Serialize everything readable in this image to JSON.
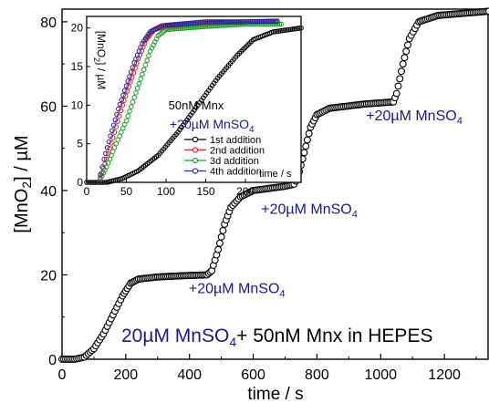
{
  "chart_data": [
    {
      "type": "scatter",
      "role": "main",
      "xlabel": "time / s",
      "ylabel_parts": [
        "[MnO",
        "2",
        "] / µM"
      ],
      "xlim": [
        0,
        1340
      ],
      "ylim": [
        0,
        83
      ],
      "xticks": [
        0,
        200,
        400,
        600,
        800,
        1000,
        1200
      ],
      "yticks": [
        0,
        20,
        40,
        60,
        80
      ],
      "grid": false,
      "marker": "open-circle",
      "marker_color": "#000000",
      "series": [
        {
          "points": [
            [
              0,
              0
            ],
            [
              40,
              0
            ],
            [
              70,
              0.5
            ],
            [
              100,
              2.5
            ],
            [
              130,
              6
            ],
            [
              160,
              10.5
            ],
            [
              190,
              15
            ],
            [
              215,
              18
            ],
            [
              240,
              19
            ],
            [
              300,
              19.5
            ],
            [
              380,
              19.8
            ],
            [
              455,
              20
            ],
            [
              470,
              21
            ],
            [
              490,
              26
            ],
            [
              510,
              32
            ],
            [
              530,
              36
            ],
            [
              560,
              38.5
            ],
            [
              600,
              40
            ],
            [
              700,
              41
            ],
            [
              728,
              41.5
            ],
            [
              740,
              43
            ],
            [
              760,
              49
            ],
            [
              780,
              55
            ],
            [
              800,
              58
            ],
            [
              840,
              59.5
            ],
            [
              950,
              60.5
            ],
            [
              1040,
              61
            ],
            [
              1050,
              63
            ],
            [
              1070,
              70
            ],
            [
              1090,
              76
            ],
            [
              1120,
              80
            ],
            [
              1180,
              81.5
            ],
            [
              1340,
              82.5
            ]
          ]
        }
      ],
      "annotations": [
        {
          "text_parts": [
            "+20",
            "µ",
            "M MnSO",
            "4"
          ],
          "x": 455,
          "y": 20
        },
        {
          "text_parts": [
            "+20",
            "µ",
            "M MnSO",
            "4"
          ],
          "x": 728,
          "y": 41
        },
        {
          "text_parts": [
            "+20",
            "µ",
            "M MnSO",
            "4"
          ],
          "x": 1040,
          "y": 61
        }
      ],
      "caption_parts": [
        "20µM MnSO",
        "4",
        "+ 50nM Mnx in HEPES"
      ],
      "colors": {
        "axis": "#000000",
        "annotation": "#1a1a8c",
        "caption_blue": "#1a1a8c",
        "caption_black": "#000000"
      }
    },
    {
      "type": "scatter",
      "role": "inset",
      "xlabel": "time / s",
      "ylabel_parts": [
        "[MnO",
        "2",
        "] / µM"
      ],
      "xlim": [
        0,
        270
      ],
      "ylim": [
        0,
        21.5
      ],
      "xticks": [
        0,
        50,
        100,
        150,
        200
      ],
      "yticks": [
        0,
        5,
        10,
        15,
        20
      ],
      "grid": false,
      "legend_title": "50nM Mnx",
      "legend_subtitle_parts": [
        "+20",
        "µ",
        "M MnSO",
        "4"
      ],
      "legend_position": "right",
      "series": [
        {
          "name": "1st addition",
          "color": "#000000",
          "points": [
            [
              0,
              0
            ],
            [
              25,
              0
            ],
            [
              45,
              0.5
            ],
            [
              65,
              1.5
            ],
            [
              90,
              3.5
            ],
            [
              115,
              6.5
            ],
            [
              140,
              10
            ],
            [
              165,
              13.5
            ],
            [
              190,
              16.5
            ],
            [
              210,
              18.5
            ],
            [
              235,
              19.5
            ],
            [
              270,
              20
            ]
          ]
        },
        {
          "name": "2nd addition",
          "color": "#e0201c",
          "points": [
            [
              15,
              0
            ],
            [
              25,
              3
            ],
            [
              35,
              6.5
            ],
            [
              45,
              10
            ],
            [
              55,
              13
            ],
            [
              65,
              16
            ],
            [
              75,
              18.5
            ],
            [
              85,
              19.8
            ],
            [
              100,
              20.2
            ],
            [
              150,
              20.6
            ],
            [
              200,
              20.8
            ],
            [
              240,
              20.8
            ]
          ]
        },
        {
          "name": "3d addition",
          "color": "#1e9e2a",
          "points": [
            [
              15,
              0
            ],
            [
              25,
              2
            ],
            [
              35,
              4.5
            ],
            [
              50,
              8
            ],
            [
              60,
              11
            ],
            [
              70,
              14
            ],
            [
              80,
              17
            ],
            [
              90,
              19
            ],
            [
              100,
              19.8
            ],
            [
              150,
              20.2
            ],
            [
              200,
              20.5
            ],
            [
              245,
              20.5
            ]
          ]
        },
        {
          "name": "4th addition",
          "color": "#24249a",
          "points": [
            [
              15,
              0
            ],
            [
              22,
              3
            ],
            [
              30,
              6
            ],
            [
              40,
              9.5
            ],
            [
              50,
              12.5
            ],
            [
              60,
              15.5
            ],
            [
              70,
              18
            ],
            [
              80,
              19.5
            ],
            [
              95,
              20.3
            ],
            [
              150,
              20.8
            ],
            [
              200,
              20.8
            ],
            [
              240,
              20.9
            ]
          ]
        }
      ]
    }
  ]
}
